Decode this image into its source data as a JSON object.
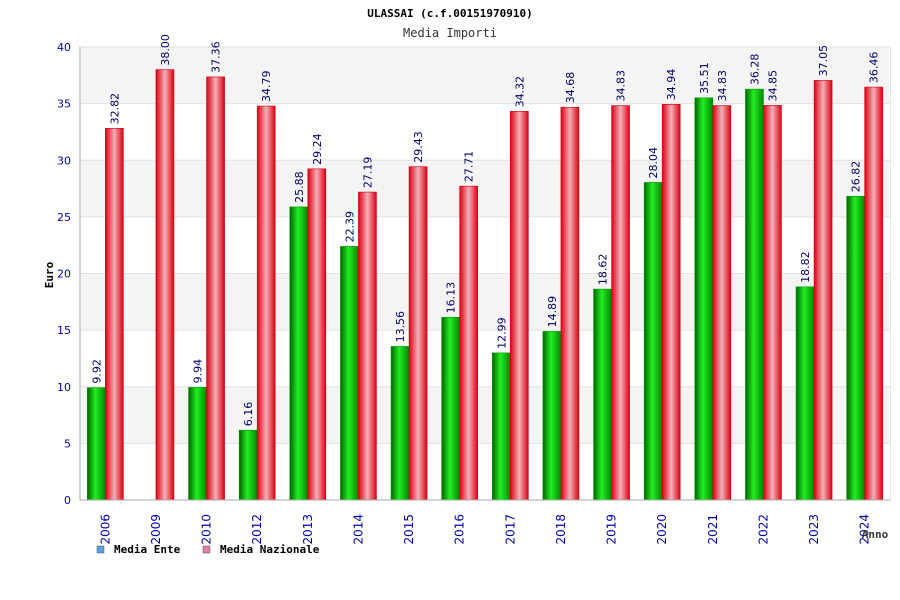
{
  "chart_data": {
    "type": "bar",
    "title": "ULASSAI (c.f.00151970910)",
    "subtitle": "Media Importi",
    "xlabel": "Anno",
    "ylabel": "Euro",
    "ylim": [
      0,
      40
    ],
    "yticks": [
      "0",
      "5",
      "10",
      "15",
      "20",
      "25",
      "30",
      "35",
      "40"
    ],
    "grid": true,
    "legend_position": "bottom-left",
    "categories": [
      "2006",
      "2009",
      "2010",
      "2012",
      "2013",
      "2014",
      "2015",
      "2016",
      "2017",
      "2018",
      "2019",
      "2020",
      "2021",
      "2022",
      "2023",
      "2024"
    ],
    "series": [
      {
        "name": "Media Ente",
        "color": "#00cc00",
        "values": [
          9.92,
          null,
          9.94,
          6.16,
          25.88,
          22.39,
          13.56,
          16.13,
          12.99,
          14.89,
          18.62,
          28.04,
          35.51,
          36.28,
          18.82,
          26.82
        ],
        "labels": [
          "9.92",
          "",
          "9.94",
          "6.16",
          "25.88",
          "22.39",
          "13.56",
          "16.13",
          "12.99",
          "14.89",
          "18.62",
          "28.04",
          "35.51",
          "36.28",
          "18.82",
          "26.82"
        ]
      },
      {
        "name": "Media Nazionale",
        "color": "#ee1122",
        "values": [
          32.82,
          38.0,
          37.36,
          34.79,
          29.24,
          27.19,
          29.43,
          27.71,
          34.32,
          34.68,
          34.83,
          34.94,
          34.83,
          34.85,
          37.05,
          36.46
        ],
        "labels": [
          "32.82",
          "38.00",
          "37.36",
          "34.79",
          "29.24",
          "27.19",
          "29.43",
          "27.71",
          "34.32",
          "34.68",
          "34.83",
          "34.94",
          "34.83",
          "34.85",
          "37.05",
          "36.46"
        ]
      }
    ],
    "legend": [
      {
        "label": "Media Ente",
        "color": "#5aa0e6"
      },
      {
        "label": "Media Nazionale",
        "color": "#e080a8"
      }
    ]
  }
}
